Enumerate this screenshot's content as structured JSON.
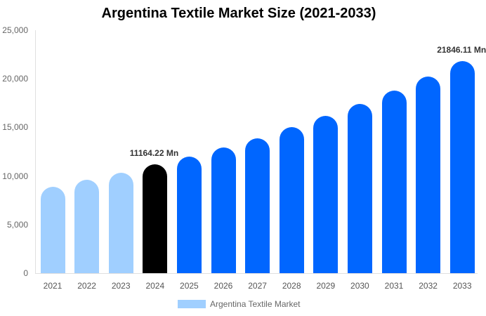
{
  "chart_data": {
    "type": "bar",
    "title": "Argentina Textile Market Size (2021-2033)",
    "xlabel": "",
    "ylabel": "",
    "ylim": [
      0,
      25000
    ],
    "yticks": [
      "0",
      "5,000",
      "10,000",
      "15,000",
      "20,000",
      "25,000"
    ],
    "categories": [
      "2021",
      "2022",
      "2023",
      "2024",
      "2025",
      "2026",
      "2027",
      "2028",
      "2029",
      "2030",
      "2031",
      "2032",
      "2033"
    ],
    "series": [
      {
        "name": "Argentina Textile Market",
        "values": [
          8900,
          9600,
          10300,
          11164.22,
          12000,
          12900,
          13900,
          15000,
          16200,
          17400,
          18800,
          20200,
          21846.11
        ]
      }
    ],
    "bar_colors": [
      "#a0cfff",
      "#a0cfff",
      "#a0cfff",
      "#000000",
      "#0066ff",
      "#0066ff",
      "#0066ff",
      "#0066ff",
      "#0066ff",
      "#0066ff",
      "#0066ff",
      "#0066ff",
      "#0066ff"
    ],
    "annotations": [
      {
        "category": "2024",
        "text": "11164.22 Mn"
      },
      {
        "category": "2033",
        "text": "21846.11 Mn"
      }
    ],
    "legend": {
      "position": "bottom",
      "entries": [
        "Argentina Textile Market"
      ]
    },
    "grid": false
  }
}
